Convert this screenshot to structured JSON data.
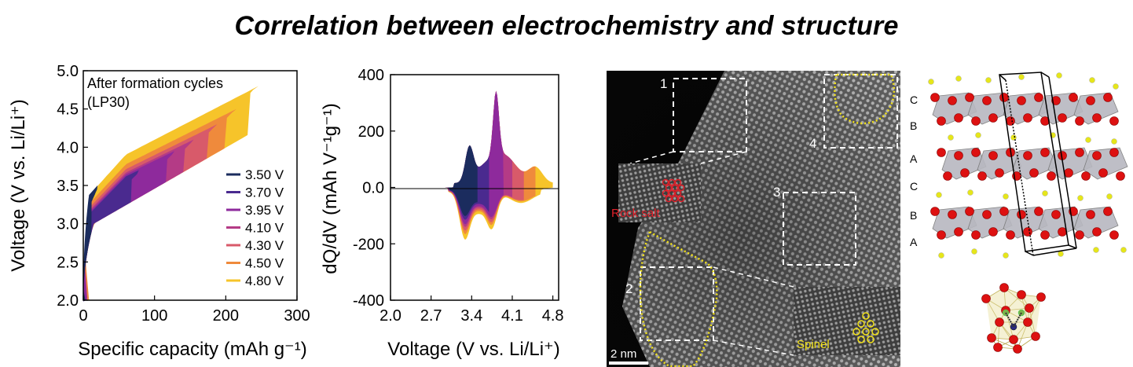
{
  "title": "Correlation between electrochemistry and structure",
  "chart_data": [
    {
      "type": "area",
      "xlabel": "Specific capacity (mAh g⁻¹)",
      "ylabel": "Voltage (V vs. Li/Li⁺)",
      "annotation_line1": "After formation cycles",
      "annotation_line2": "(LP30)",
      "xlim": [
        0,
        300
      ],
      "ylim": [
        2.0,
        5.0
      ],
      "xticks": [
        "0",
        "100",
        "200",
        "300"
      ],
      "yticks": [
        "2.0",
        "2.5",
        "3.0",
        "3.5",
        "4.0",
        "4.5",
        "5.0"
      ],
      "legend_position": "right",
      "series": [
        {
          "name": "3.50 V",
          "color": "#1b2c5e",
          "charge_end": [
            20,
            3.5
          ],
          "discharge_end": [
            3,
            2.0
          ]
        },
        {
          "name": "3.70 V",
          "color": "#4a2a8f",
          "charge_end": [
            78,
            3.7
          ],
          "discharge_end": [
            4,
            2.0
          ]
        },
        {
          "name": "3.95 V",
          "color": "#8e2a9c",
          "charge_end": [
            128,
            3.95
          ],
          "discharge_end": [
            5,
            2.0
          ]
        },
        {
          "name": "4.10 V",
          "color": "#b43b86",
          "charge_end": [
            155,
            4.1
          ],
          "discharge_end": [
            6,
            2.0
          ]
        },
        {
          "name": "4.30 V",
          "color": "#d85a6a",
          "charge_end": [
            188,
            4.3
          ],
          "discharge_end": [
            7,
            2.0
          ]
        },
        {
          "name": "4.50 V",
          "color": "#ef8a3c",
          "charge_end": [
            215,
            4.5
          ],
          "discharge_end": [
            8,
            2.0
          ]
        },
        {
          "name": "4.80 V",
          "color": "#f6c42a",
          "charge_end": [
            246,
            4.8
          ],
          "discharge_end": [
            9,
            2.0
          ]
        }
      ]
    },
    {
      "type": "area",
      "xlabel": "Voltage (V vs. Li/Li⁺)",
      "ylabel": "dQ/dV (mAh V⁻¹g⁻¹)",
      "xlim": [
        2.0,
        4.9
      ],
      "ylim": [
        -400,
        400
      ],
      "xticks": [
        "2.0",
        "2.7",
        "3.4",
        "4.1",
        "4.8"
      ],
      "yticks": [
        "400",
        "200",
        "0.0",
        "-200",
        "-400"
      ],
      "series": [
        {
          "name": "3.50 V",
          "color": "#1b2c5e",
          "v_max": 3.5
        },
        {
          "name": "3.70 V",
          "color": "#4a2a8f",
          "v_max": 3.7
        },
        {
          "name": "3.95 V",
          "color": "#8e2a9c",
          "v_max": 3.95
        },
        {
          "name": "4.10 V",
          "color": "#b43b86",
          "v_max": 4.1
        },
        {
          "name": "4.30 V",
          "color": "#d85a6a",
          "v_max": 4.3
        },
        {
          "name": "4.50 V",
          "color": "#ef8a3c",
          "v_max": 4.5
        },
        {
          "name": "4.80 V",
          "color": "#f6c42a",
          "v_max": 4.8
        }
      ]
    }
  ],
  "micrograph": {
    "region_labels": [
      "1",
      "2",
      "3",
      "4"
    ],
    "rock_salt_label": "Rock salt",
    "spinel_label": "Spinel",
    "scale_bar_label": "2 nm",
    "rock_salt_color": "#e0202a",
    "spinel_color": "#f2e21a"
  },
  "structure": {
    "layer_labels": [
      "C",
      "B",
      "A",
      "C",
      "B",
      "A"
    ],
    "atom_color": "#dd1111",
    "small_atom_color": "#e6e61a"
  }
}
